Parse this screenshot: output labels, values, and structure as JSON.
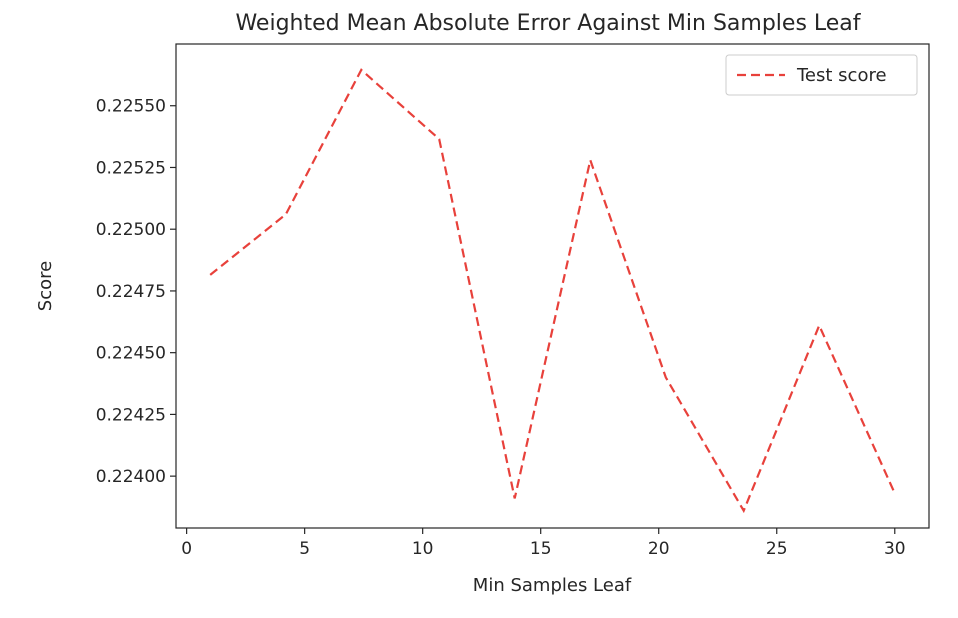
{
  "chart_data": {
    "type": "line",
    "title": "Weighted Mean Absolute Error Against Min Samples Leaf",
    "xlabel": "Min Samples Leaf",
    "ylabel": "Score",
    "xlim": [
      -0.45,
      31.45
    ],
    "ylim": [
      0.22379,
      0.22575
    ],
    "xticks": [
      0,
      5,
      10,
      15,
      20,
      25,
      30
    ],
    "yticks": [
      0.224,
      0.22425,
      0.2245,
      0.22475,
      0.225,
      0.22525,
      0.2255
    ],
    "ytick_labels": [
      "0.22400",
      "0.22425",
      "0.22450",
      "0.22475",
      "0.22500",
      "0.22525",
      "0.22550"
    ],
    "grid": false,
    "legend_position": "top-right",
    "series": [
      {
        "name": "Test score",
        "color": "#e8413b",
        "style": "dashed",
        "x": [
          1,
          4.2,
          7.4,
          10.7,
          13.9,
          17.1,
          20.3,
          23.6,
          26.8,
          30
        ],
        "y": [
          0.224815,
          0.22506,
          0.225645,
          0.225365,
          0.22391,
          0.22528,
          0.2244,
          0.22386,
          0.22461,
          0.22393
        ]
      }
    ]
  }
}
